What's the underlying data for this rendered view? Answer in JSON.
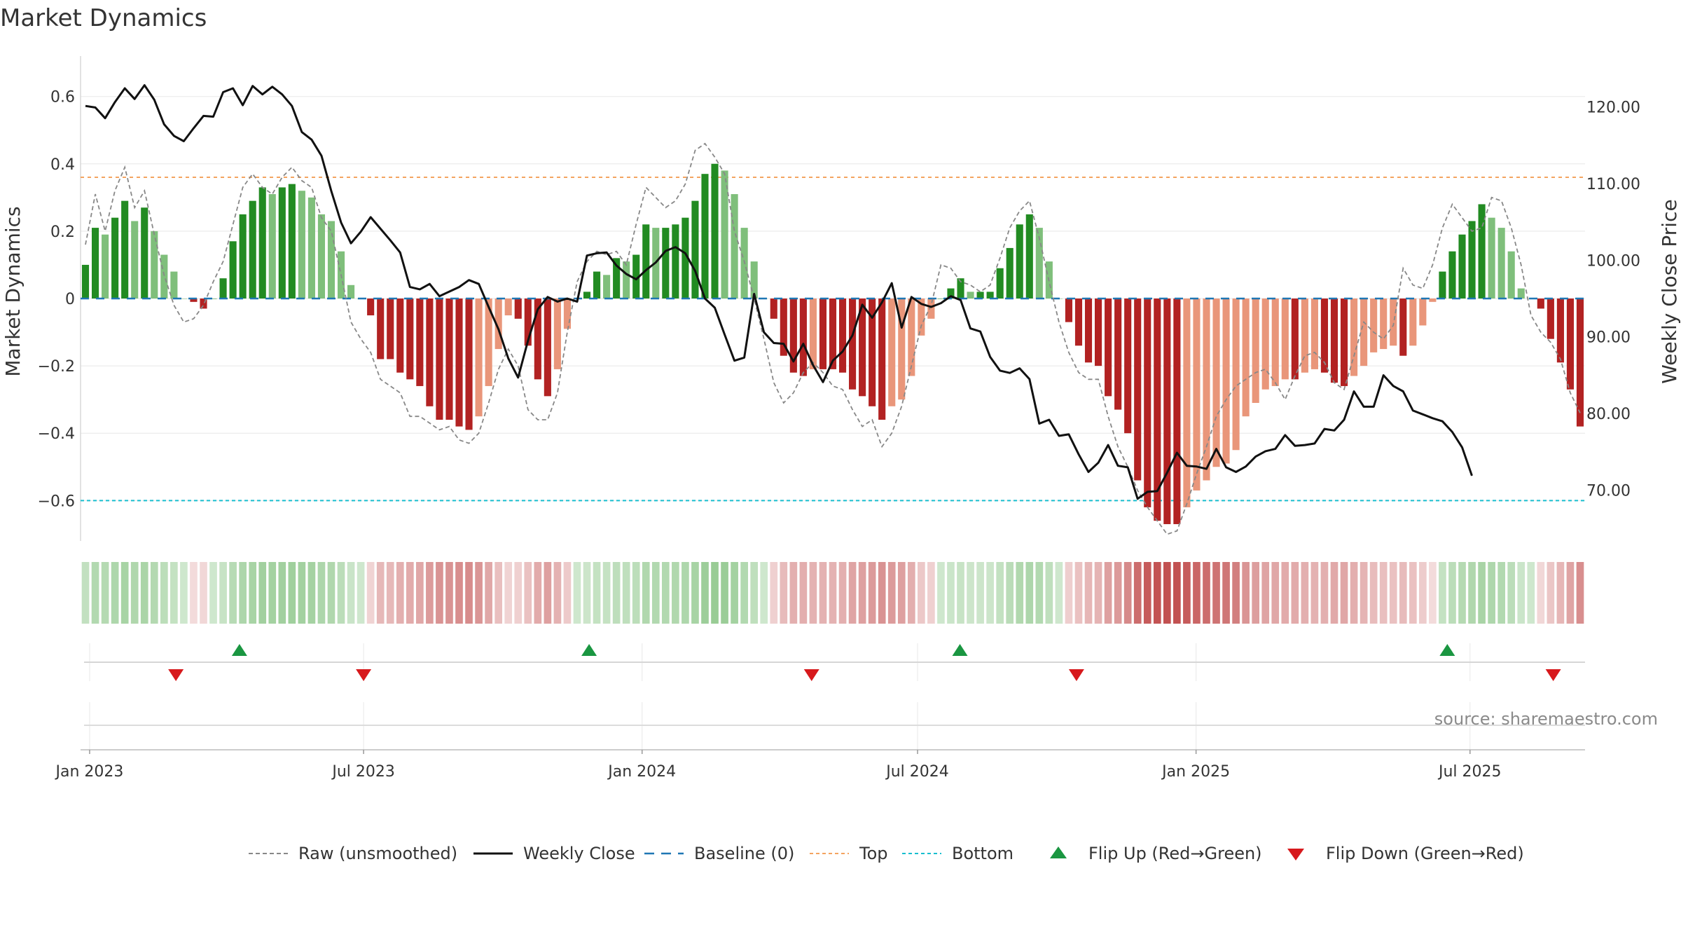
{
  "title": "Market Dynamics",
  "source_note": "source: sharemaestro.com",
  "chart_data": {
    "type": "bar",
    "title": "Market Dynamics",
    "ylabel": "Market Dynamics",
    "y2label": "Weekly Close Price",
    "ylim": [
      -0.72,
      0.72
    ],
    "y2lim": [
      63.4,
      126.6
    ],
    "yticks": [
      0.6,
      0.4,
      0.2,
      0,
      -0.2,
      -0.4,
      -0.6
    ],
    "ytick_labels": [
      "0.6",
      "0.4",
      "0.2",
      "0",
      "−0.2",
      "−0.4",
      "−0.6"
    ],
    "y2ticks": [
      120,
      110,
      100,
      90,
      80,
      70
    ],
    "y2tick_labels": [
      "120.00",
      "110.00",
      "100.00",
      "90.00",
      "80.00",
      "70.00"
    ],
    "x_start": "2022-12-26",
    "xticks": [
      "2023-01-01",
      "2023-07-01",
      "2024-01-01",
      "2024-07-01",
      "2025-01-01",
      "2025-07-01"
    ],
    "xtick_labels": [
      "Jan 2023",
      "Jul 2023",
      "Jan 2024",
      "Jul 2024",
      "Jan 2025",
      "Jul 2025"
    ],
    "top": 0.36,
    "bottom": -0.6,
    "baseline": 0,
    "grid": true,
    "legend_position": "bottom-center",
    "colors": {
      "strong_green": "#228b22",
      "light_green": "#7fbf7b",
      "strong_red": "#b22222",
      "light_red": "#e9967a",
      "raw": "#888888",
      "close": "#111111",
      "baseline": "#1f77b4",
      "top": "#f4a460",
      "bottom": "#17becf",
      "flip_up": "#1a9641",
      "flip_down": "#d7191c"
    },
    "momentum": [
      0.1,
      0.21,
      0.19,
      0.24,
      0.29,
      0.23,
      0.27,
      0.2,
      0.13,
      0.08,
      0.0,
      -0.01,
      -0.03,
      0.0,
      0.06,
      0.17,
      0.25,
      0.29,
      0.33,
      0.31,
      0.33,
      0.34,
      0.32,
      0.3,
      0.25,
      0.23,
      0.14,
      0.04,
      0.0,
      -0.05,
      -0.18,
      -0.18,
      -0.22,
      -0.24,
      -0.26,
      -0.32,
      -0.36,
      -0.36,
      -0.38,
      -0.39,
      -0.35,
      -0.26,
      -0.15,
      -0.05,
      -0.06,
      -0.14,
      -0.24,
      -0.29,
      -0.21,
      -0.09,
      0.0,
      0.02,
      0.08,
      0.07,
      0.12,
      0.11,
      0.13,
      0.22,
      0.21,
      0.21,
      0.22,
      0.24,
      0.29,
      0.37,
      0.4,
      0.38,
      0.31,
      0.21,
      0.11,
      0.0,
      -0.06,
      -0.17,
      -0.22,
      -0.23,
      -0.21,
      -0.21,
      -0.21,
      -0.22,
      -0.27,
      -0.29,
      -0.32,
      -0.36,
      -0.32,
      -0.3,
      -0.23,
      -0.11,
      -0.06,
      0.0,
      0.03,
      0.06,
      0.02,
      0.02,
      0.02,
      0.09,
      0.15,
      0.22,
      0.25,
      0.21,
      0.11,
      0.0,
      -0.07,
      -0.14,
      -0.19,
      -0.2,
      -0.29,
      -0.33,
      -0.4,
      -0.54,
      -0.62,
      -0.66,
      -0.67,
      -0.67,
      -0.62,
      -0.57,
      -0.54,
      -0.5,
      -0.49,
      -0.45,
      -0.35,
      -0.31,
      -0.27,
      -0.26,
      -0.24,
      -0.24,
      -0.22,
      -0.21,
      -0.22,
      -0.25,
      -0.26,
      -0.23,
      -0.2,
      -0.16,
      -0.15,
      -0.14,
      -0.17,
      -0.14,
      -0.08,
      -0.01,
      0.08,
      0.14,
      0.19,
      0.23,
      0.28,
      0.24,
      0.21,
      0.14,
      0.03,
      0.0,
      -0.03,
      -0.12,
      -0.19,
      -0.27,
      -0.38
    ],
    "raw": [
      0.16,
      0.31,
      0.2,
      0.32,
      0.39,
      0.27,
      0.32,
      0.19,
      0.07,
      -0.02,
      -0.07,
      -0.06,
      -0.02,
      0.05,
      0.11,
      0.22,
      0.33,
      0.37,
      0.33,
      0.31,
      0.36,
      0.39,
      0.35,
      0.33,
      0.24,
      0.2,
      0.07,
      -0.07,
      -0.12,
      -0.16,
      -0.24,
      -0.26,
      -0.28,
      -0.35,
      -0.35,
      -0.37,
      -0.39,
      -0.38,
      -0.42,
      -0.43,
      -0.4,
      -0.31,
      -0.21,
      -0.15,
      -0.2,
      -0.33,
      -0.36,
      -0.36,
      -0.28,
      -0.1,
      0.05,
      0.11,
      0.14,
      0.13,
      0.14,
      0.1,
      0.22,
      0.33,
      0.3,
      0.27,
      0.29,
      0.34,
      0.44,
      0.46,
      0.42,
      0.37,
      0.2,
      0.11,
      0.0,
      -0.12,
      -0.25,
      -0.31,
      -0.28,
      -0.22,
      -0.19,
      -0.22,
      -0.26,
      -0.27,
      -0.33,
      -0.38,
      -0.36,
      -0.44,
      -0.4,
      -0.32,
      -0.2,
      -0.08,
      -0.02,
      0.1,
      0.09,
      0.05,
      0.04,
      0.02,
      0.04,
      0.12,
      0.21,
      0.26,
      0.29,
      0.18,
      0.05,
      -0.07,
      -0.16,
      -0.22,
      -0.24,
      -0.24,
      -0.35,
      -0.44,
      -0.5,
      -0.57,
      -0.62,
      -0.66,
      -0.7,
      -0.69,
      -0.61,
      -0.52,
      -0.44,
      -0.35,
      -0.3,
      -0.26,
      -0.24,
      -0.22,
      -0.21,
      -0.25,
      -0.3,
      -0.23,
      -0.17,
      -0.16,
      -0.19,
      -0.25,
      -0.27,
      -0.17,
      -0.07,
      -0.1,
      -0.12,
      -0.08,
      0.09,
      0.04,
      0.03,
      0.1,
      0.21,
      0.28,
      0.24,
      0.2,
      0.21,
      0.3,
      0.29,
      0.21,
      0.1,
      -0.05,
      -0.1,
      -0.13,
      -0.18,
      -0.28,
      -0.34
    ],
    "close": [
      120.1,
      119.9,
      118.5,
      120.6,
      122.4,
      121.0,
      122.8,
      120.9,
      117.7,
      116.2,
      115.5,
      117.2,
      118.8,
      118.7,
      121.9,
      122.4,
      120.2,
      122.7,
      121.6,
      122.6,
      121.6,
      120.1,
      116.7,
      115.7,
      113.6,
      109.0,
      104.9,
      102.2,
      103.7,
      105.6,
      104.1,
      102.6,
      101.0,
      96.5,
      96.2,
      96.9,
      95.3,
      95.9,
      96.5,
      97.4,
      96.9,
      93.9,
      91.0,
      87.2,
      84.7,
      89.5,
      93.6,
      95.2,
      94.6,
      95.0,
      94.6,
      100.6,
      100.9,
      101.0,
      99.3,
      98.2,
      97.5,
      98.7,
      99.7,
      101.2,
      101.7,
      100.9,
      98.6,
      95.0,
      93.8,
      90.3,
      86.9,
      87.3,
      95.6,
      90.6,
      89.2,
      89.1,
      86.8,
      89.1,
      86.3,
      84.1,
      86.9,
      88.1,
      90.2,
      94.2,
      92.5,
      94.5,
      97.0,
      91.2,
      95.2,
      94.3,
      93.9,
      94.4,
      95.3,
      94.8,
      91.1,
      90.7,
      87.4,
      85.6,
      85.3,
      85.9,
      84.5,
      78.7,
      79.2,
      77.1,
      77.3,
      74.7,
      72.4,
      73.6,
      75.9,
      73.2,
      73.0,
      68.9,
      69.8,
      69.9,
      72.3,
      74.9,
      73.2,
      73.1,
      72.8,
      75.4,
      73.0,
      72.4,
      73.1,
      74.4,
      75.1,
      75.4,
      77.2,
      75.8,
      75.9,
      76.1,
      78.0,
      77.8,
      79.2,
      82.9,
      80.9,
      80.9,
      85.0,
      83.6,
      82.9,
      80.4,
      79.9,
      79.4,
      79.0,
      77.6,
      75.6,
      71.9
    ],
    "regime_strip": "momentum colour per week: green when > 0, red when < 0, intensity grows with magnitude",
    "flip_up": [
      "2023-04-10",
      "2023-11-27",
      "2024-07-29",
      "2025-06-16"
    ],
    "flip_down": [
      "2023-02-27",
      "2023-07-01",
      "2024-04-22",
      "2024-10-14",
      "2025-08-25"
    ],
    "legend": [
      {
        "key": "raw",
        "label": "Raw (unsmoothed)"
      },
      {
        "key": "close",
        "label": "Weekly Close"
      },
      {
        "key": "baseline",
        "label": "Baseline (0)"
      },
      {
        "key": "top",
        "label": "Top"
      },
      {
        "key": "bottom",
        "label": "Bottom"
      },
      {
        "key": "flip_up",
        "label": "Flip Up (Red→Green)"
      },
      {
        "key": "flip_down",
        "label": "Flip Down (Green→Red)"
      }
    ]
  }
}
